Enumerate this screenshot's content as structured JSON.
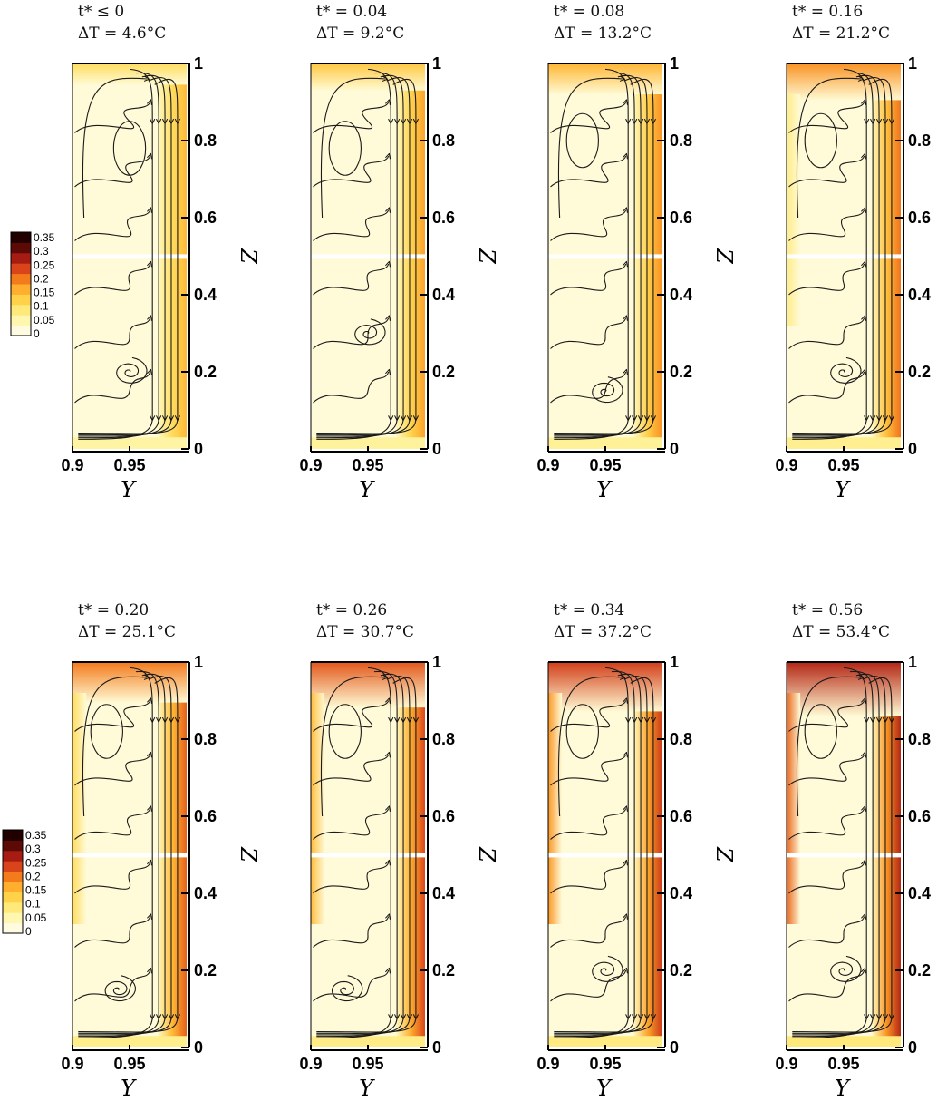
{
  "chart_data": {
    "type": "heatmap",
    "x_label": "Y",
    "y_label": "Z",
    "x_ticks": [
      "0.9",
      "0.95"
    ],
    "y_ticks": [
      "0",
      "0.2",
      "0.4",
      "0.6",
      "0.8",
      "1"
    ],
    "xlim": [
      0.9,
      1.0
    ],
    "ylim": [
      0,
      1
    ],
    "colorbar": {
      "ticks": [
        "0.35",
        "0.3",
        "0.25",
        "0.2",
        "0.15",
        "0.1",
        "0.05",
        "0"
      ],
      "levels": [
        0,
        0.05,
        0.1,
        0.15,
        0.2,
        0.25,
        0.3,
        0.35
      ],
      "colors": [
        "#fffbe0",
        "#fff7b0",
        "#ffe97a",
        "#ffd24a",
        "#ffae2e",
        "#f37b1c",
        "#d9441a",
        "#a61c12",
        "#5c0a06",
        "#220000"
      ]
    },
    "panels": [
      {
        "t_label": "t* ≤ 0",
        "dT_label": "ΔT = 4.6°C",
        "intensity": 0.15,
        "vortex": [
          0.95,
          0.2
        ],
        "vortex2": [
          0.95,
          0.78
        ]
      },
      {
        "t_label": "t* = 0.04",
        "dT_label": "ΔT = 9.2°C",
        "intensity": 0.3,
        "vortex": [
          0.95,
          0.3
        ],
        "vortex2": [
          0.93,
          0.78
        ]
      },
      {
        "t_label": "t* = 0.08",
        "dT_label": "ΔT = 13.2°C",
        "intensity": 0.4,
        "vortex": [
          0.95,
          0.15
        ],
        "vortex2": [
          0.93,
          0.8
        ]
      },
      {
        "t_label": "t* = 0.16",
        "dT_label": "ΔT = 21.2°C",
        "intensity": 0.55,
        "vortex": [
          0.95,
          0.2
        ],
        "vortex2": [
          0.93,
          0.8
        ]
      },
      {
        "t_label": "t* = 0.20",
        "dT_label": "ΔT = 25.1°C",
        "intensity": 0.65,
        "vortex": [
          0.94,
          0.15
        ],
        "vortex2": [
          0.93,
          0.82
        ]
      },
      {
        "t_label": "t* = 0.26",
        "dT_label": "ΔT = 30.7°C",
        "intensity": 0.78,
        "vortex": [
          0.93,
          0.15
        ],
        "vortex2": [
          0.93,
          0.82
        ]
      },
      {
        "t_label": "t* = 0.34",
        "dT_label": "ΔT = 37.2°C",
        "intensity": 0.88,
        "vortex": [
          0.95,
          0.2
        ],
        "vortex2": [
          0.93,
          0.82
        ]
      },
      {
        "t_label": "t* = 0.56",
        "dT_label": "ΔT = 53.4°C",
        "intensity": 1.0,
        "vortex": [
          0.95,
          0.2
        ],
        "vortex2": [
          0.93,
          0.82
        ]
      }
    ]
  }
}
